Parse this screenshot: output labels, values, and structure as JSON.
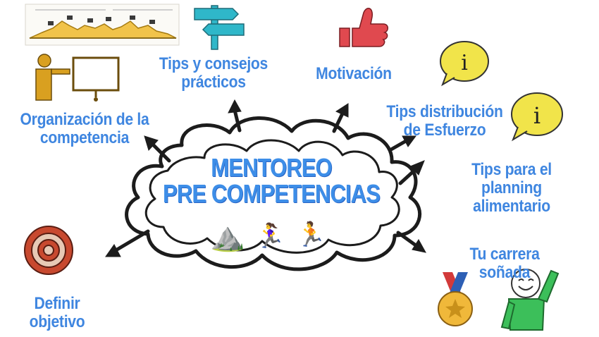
{
  "center": {
    "line1": "MENTOREO",
    "line2": "PRE COMPETENCIAS",
    "emojis": [
      "⛰️",
      "🏃‍♀️",
      "🏃"
    ]
  },
  "labels": {
    "tips_consejos": [
      "Tips y consejos",
      "prácticos"
    ],
    "motivacion": "Motivación",
    "organizacion": [
      "Organización de la",
      "competencia"
    ],
    "tips_distribucion": [
      "Tips distribución",
      "de Esfuerzo"
    ],
    "tips_planning": [
      "Tips para el planning",
      "alimentario"
    ],
    "tu_carrera": "Tu carrera soñada",
    "definir_objetivo": "Definir objetivo"
  },
  "colors": {
    "label_blue": "#3f86e0",
    "title_blue": "#3d8ee8",
    "signpost": "#2fb7c9",
    "thumb": "#e0494f",
    "speech_bubble": "#f1e44a",
    "presenter": "#d9a020",
    "target": "#c8492f",
    "medal": "#f0b83a",
    "person_green": "#3cbf5a"
  },
  "icons": [
    "elevation-profile-icon",
    "signpost-icon",
    "thumbs-up-icon",
    "info-bubble-icon",
    "presenter-board-icon",
    "target-icon",
    "medal-icon",
    "happy-runner-icon"
  ]
}
